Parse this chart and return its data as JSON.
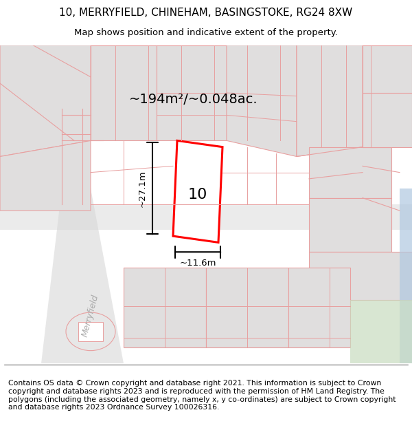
{
  "title": "10, MERRYFIELD, CHINEHAM, BASINGSTOKE, RG24 8XW",
  "subtitle": "Map shows position and indicative extent of the property.",
  "footer": "Contains OS data © Crown copyright and database right 2021. This information is subject to Crown copyright and database rights 2023 and is reproduced with the permission of HM Land Registry. The polygons (including the associated geometry, namely x, y co-ordinates) are subject to Crown copyright and database rights 2023 Ordnance Survey 100026316.",
  "area_label": "~194m²/~0.048ac.",
  "width_label": "~11.6m",
  "height_label": "~27.1m",
  "plot_number": "10",
  "bg_color": "#f5f0f0",
  "map_bg": "#f5f0f0",
  "road_color": "#d0d0d0",
  "building_fill": "#e0dede",
  "boundary_color": "#e8a0a0",
  "highlight_color": "#ff0000",
  "title_fontsize": 11,
  "subtitle_fontsize": 9.5,
  "footer_fontsize": 7.8
}
